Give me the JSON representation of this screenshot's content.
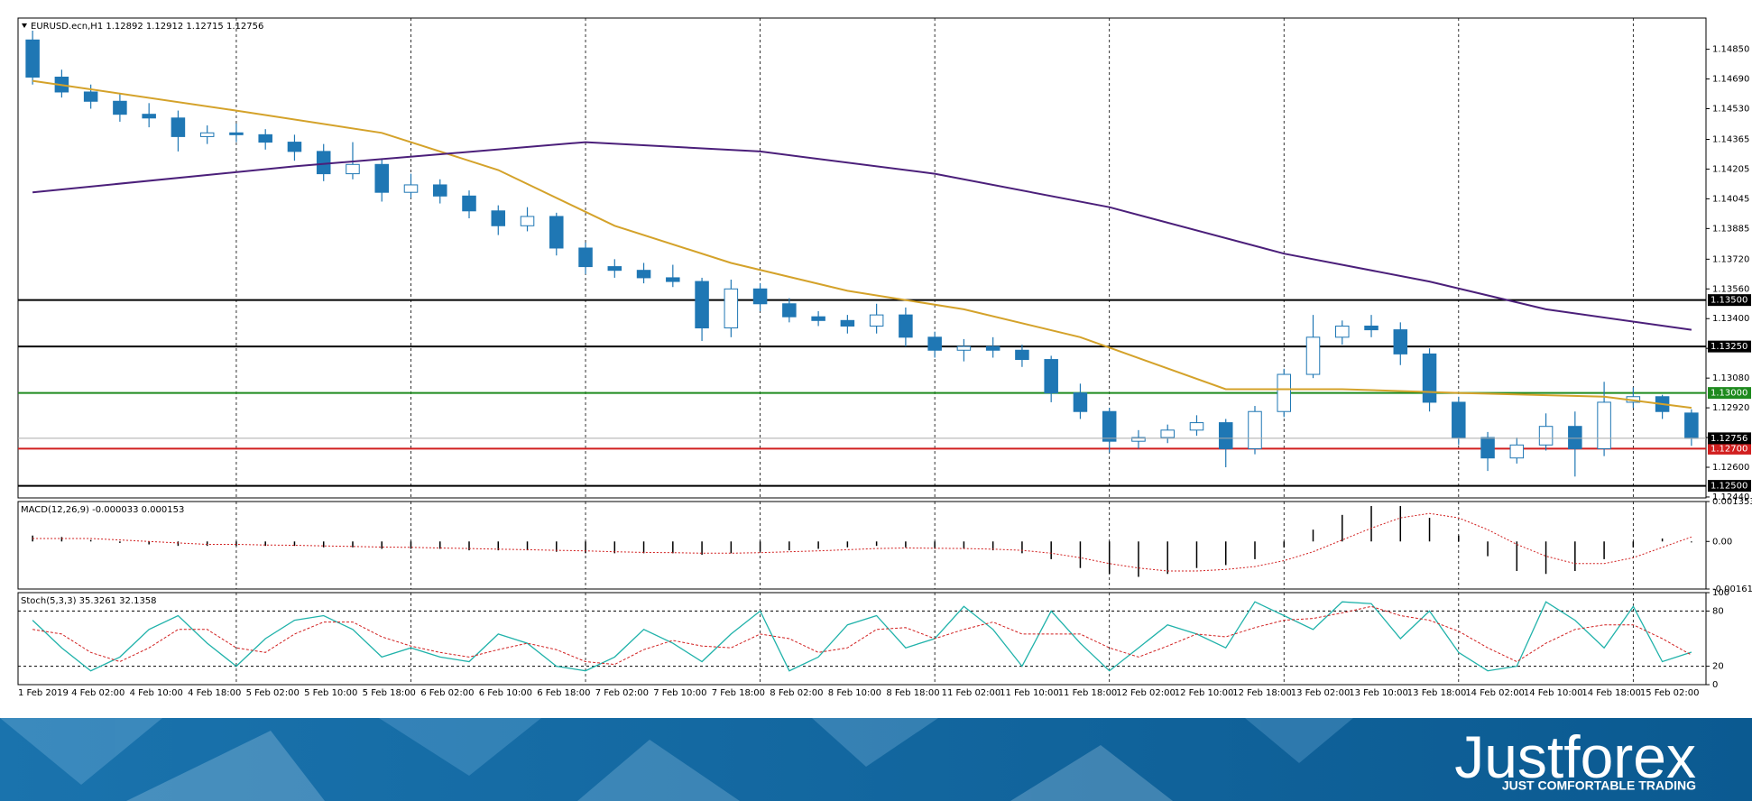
{
  "chart_data": [
    {
      "type": "candlestick",
      "title": "EURUSD.ecn,H1  1.12892 1.12912 1.12715 1.12756",
      "up_color": "#ffffff",
      "down_color": "#1f77b4",
      "wick_color": "#1f77b4",
      "open": [
        1.149,
        1.147,
        1.1462,
        1.1457,
        1.145,
        1.1448,
        1.1438,
        1.144,
        1.1439,
        1.1435,
        1.143,
        1.1418,
        1.1423,
        1.1408,
        1.1412,
        1.1406,
        1.1398,
        1.139,
        1.1395,
        1.1378,
        1.1368,
        1.1366,
        1.1362,
        1.136,
        1.1335,
        1.1356,
        1.1348,
        1.1341,
        1.1339,
        1.1336,
        1.1342,
        1.133,
        1.1323,
        1.1325,
        1.1323,
        1.1318,
        1.13,
        1.129,
        1.1274,
        1.1276,
        1.128,
        1.1284,
        1.127,
        1.129,
        1.131,
        1.133,
        1.1336,
        1.1334,
        1.1321,
        1.1295,
        1.1276,
        1.1265,
        1.1272,
        1.1282,
        1.127,
        1.1295,
        1.1298,
        1.12892
      ],
      "high": [
        1.1495,
        1.1474,
        1.1466,
        1.1461,
        1.1456,
        1.1452,
        1.1444,
        1.1445,
        1.1442,
        1.1439,
        1.1434,
        1.1435,
        1.1426,
        1.1418,
        1.1415,
        1.1409,
        1.1401,
        1.14,
        1.1397,
        1.1381,
        1.1372,
        1.137,
        1.1369,
        1.1362,
        1.1361,
        1.1359,
        1.1351,
        1.1344,
        1.1342,
        1.1348,
        1.1346,
        1.1333,
        1.1329,
        1.133,
        1.1326,
        1.132,
        1.1305,
        1.1292,
        1.128,
        1.1283,
        1.1288,
        1.1286,
        1.1293,
        1.1313,
        1.1342,
        1.1339,
        1.1342,
        1.1338,
        1.1324,
        1.1298,
        1.1279,
        1.1276,
        1.1289,
        1.129,
        1.1306,
        1.1303,
        1.1299,
        1.12912
      ],
      "low": [
        1.1466,
        1.1459,
        1.1453,
        1.1446,
        1.1443,
        1.143,
        1.1434,
        1.1435,
        1.1431,
        1.1425,
        1.1414,
        1.1415,
        1.1403,
        1.1405,
        1.1402,
        1.1394,
        1.1385,
        1.1387,
        1.1374,
        1.1364,
        1.1362,
        1.1359,
        1.1357,
        1.1328,
        1.133,
        1.1344,
        1.1338,
        1.1336,
        1.1332,
        1.1332,
        1.1325,
        1.1319,
        1.1317,
        1.1319,
        1.1314,
        1.1295,
        1.1286,
        1.1268,
        1.127,
        1.1273,
        1.1277,
        1.126,
        1.1267,
        1.1287,
        1.1308,
        1.1326,
        1.133,
        1.1315,
        1.129,
        1.1272,
        1.1258,
        1.1262,
        1.1269,
        1.1255,
        1.1266,
        1.1292,
        1.1286,
        1.12715
      ],
      "close": [
        1.147,
        1.1462,
        1.1457,
        1.145,
        1.1448,
        1.1438,
        1.144,
        1.1439,
        1.1435,
        1.143,
        1.1418,
        1.1423,
        1.1408,
        1.1412,
        1.1406,
        1.1398,
        1.139,
        1.1395,
        1.1378,
        1.1368,
        1.1366,
        1.1362,
        1.136,
        1.1335,
        1.1356,
        1.1348,
        1.1341,
        1.1339,
        1.1336,
        1.1342,
        1.133,
        1.1323,
        1.1325,
        1.1323,
        1.1318,
        1.13,
        1.129,
        1.1274,
        1.1276,
        1.128,
        1.1284,
        1.127,
        1.129,
        1.131,
        1.133,
        1.1336,
        1.1334,
        1.1321,
        1.1295,
        1.1276,
        1.1265,
        1.1272,
        1.1282,
        1.127,
        1.1295,
        1.1298,
        1.129,
        1.12756
      ],
      "lines": [
        {
          "color": "#d4a22a",
          "x": [
            0,
            7,
            12,
            16,
            20,
            24,
            28,
            32,
            36,
            41,
            45,
            49,
            54,
            57
          ],
          "values": [
            1.1468,
            1.1452,
            1.144,
            1.142,
            1.139,
            1.137,
            1.1355,
            1.1345,
            1.133,
            1.1302,
            1.1302,
            1.13,
            1.1298,
            1.1292
          ]
        },
        {
          "color": "#4b1f7a",
          "x": [
            0,
            9,
            19,
            25,
            31,
            37,
            43,
            48,
            52,
            57
          ],
          "values": [
            1.1408,
            1.1422,
            1.1435,
            1.143,
            1.1418,
            1.14,
            1.1375,
            1.136,
            1.1345,
            1.1334
          ]
        }
      ],
      "levels": [
        {
          "value": 1.135,
          "label": "1.13500",
          "color": "#000000"
        },
        {
          "value": 1.1325,
          "label": "1.13250",
          "color": "#000000"
        },
        {
          "value": 1.13,
          "label": "1.13000",
          "color": "#1e8a1e"
        },
        {
          "value": 1.127,
          "label": "1.12700",
          "color": "#d11f1f"
        },
        {
          "value": 1.125,
          "label": "1.12500",
          "color": "#000000"
        }
      ],
      "ylim": [
        1.12435,
        1.15018
      ],
      "yticks": [
        {
          "value": 1.1485,
          "label": "1.14850"
        },
        {
          "value": 1.1469,
          "label": "1.14690"
        },
        {
          "value": 1.1453,
          "label": "1.14530"
        },
        {
          "value": 1.14365,
          "label": "1.14365"
        },
        {
          "value": 1.14205,
          "label": "1.14205"
        },
        {
          "value": 1.14045,
          "label": "1.14045"
        },
        {
          "value": 1.13885,
          "label": "1.13885"
        },
        {
          "value": 1.1372,
          "label": "1.13720"
        },
        {
          "value": 1.1356,
          "label": "1.13560"
        },
        {
          "value": 1.134,
          "label": "1.13400"
        },
        {
          "value": 1.1324,
          "label": "1.13240"
        },
        {
          "value": 1.1308,
          "label": "1.13080"
        },
        {
          "value": 1.1292,
          "label": "1.12920"
        },
        {
          "value": 1.1276,
          "label": "1.12760"
        },
        {
          "value": 1.126,
          "label": "1.12600"
        },
        {
          "value": 1.1244,
          "label": "1.12440"
        }
      ]
    },
    {
      "type": "macd",
      "title": "MACD(12,26,9) -0.000033 0.000153",
      "histogram": [
        0.0002,
        0.00015,
        5e-05,
        -5e-05,
        -0.0001,
        -0.00015,
        -0.00015,
        -0.00015,
        -0.00015,
        -0.00015,
        -0.0002,
        -0.0002,
        -0.00025,
        -0.00025,
        -0.00025,
        -0.0003,
        -0.0003,
        -0.0003,
        -0.00035,
        -0.0004,
        -0.0004,
        -0.0004,
        -0.0004,
        -0.00045,
        -0.0004,
        -0.00035,
        -0.0003,
        -0.00025,
        -0.0002,
        -0.00015,
        -0.0002,
        -0.00025,
        -0.00025,
        -0.0003,
        -0.0004,
        -0.0006,
        -0.0009,
        -0.0011,
        -0.0012,
        -0.0011,
        -0.0009,
        -0.0008,
        -0.0006,
        -0.0002,
        0.0004,
        0.0009,
        0.0012,
        0.0012,
        0.0008,
        0.0002,
        -0.0005,
        -0.001,
        -0.0011,
        -0.001,
        -0.0006,
        -0.0002,
        0.0001,
        -3.3e-05
      ],
      "signal": [
        0.0001,
        0.0001,
        0.0001,
        5e-05,
        0,
        -5e-05,
        -0.0001,
        -0.0001,
        -0.00012,
        -0.00013,
        -0.00015,
        -0.00017,
        -0.00019,
        -0.0002,
        -0.00022,
        -0.00024,
        -0.00026,
        -0.00028,
        -0.0003,
        -0.00032,
        -0.00035,
        -0.00037,
        -0.00038,
        -0.0004,
        -0.0004,
        -0.00038,
        -0.00035,
        -0.00032,
        -0.00028,
        -0.00024,
        -0.00022,
        -0.00023,
        -0.00024,
        -0.00026,
        -0.0003,
        -0.0004,
        -0.00055,
        -0.00075,
        -0.0009,
        -0.001,
        -0.001,
        -0.00095,
        -0.00085,
        -0.00065,
        -0.00035,
        5e-05,
        0.00045,
        0.0008,
        0.00095,
        0.0008,
        0.0004,
        -0.0001,
        -0.0005,
        -0.00075,
        -0.00075,
        -0.00055,
        -0.0002,
        0.000153
      ],
      "histogram_color": "#000000",
      "signal_color": "#d11f1f",
      "ylim": [
        -0.001612,
        0.001353
      ],
      "yticks": [
        0.001353,
        {
          "value": 0,
          "label": "0.00"
        },
        -0.001612
      ]
    },
    {
      "type": "stochastic",
      "title": "Stoch(5,3,3) 35.3261 32.1358",
      "series": [
        {
          "color": "#20b2aa",
          "values": [
            70,
            40,
            15,
            30,
            60,
            75,
            45,
            20,
            50,
            70,
            75,
            60,
            30,
            40,
            30,
            25,
            55,
            45,
            20,
            15,
            30,
            60,
            45,
            25,
            55,
            80,
            15,
            30,
            65,
            75,
            40,
            50,
            85,
            60,
            20,
            80,
            45,
            15,
            40,
            65,
            55,
            40,
            90,
            75,
            60,
            90,
            88,
            50,
            80,
            35,
            15,
            20,
            90,
            70,
            40,
            85,
            25,
            35.3261
          ]
        },
        {
          "color": "#d11f1f",
          "values": [
            60,
            55,
            35,
            25,
            40,
            60,
            60,
            40,
            35,
            55,
            68,
            68,
            52,
            42,
            35,
            30,
            38,
            45,
            38,
            25,
            22,
            38,
            48,
            42,
            40,
            55,
            50,
            35,
            40,
            60,
            62,
            50,
            60,
            68,
            55,
            55,
            55,
            40,
            30,
            42,
            55,
            52,
            62,
            70,
            72,
            78,
            85,
            75,
            70,
            58,
            40,
            25,
            45,
            60,
            65,
            65,
            50,
            32.1358
          ]
        }
      ],
      "levels": [
        80,
        20
      ],
      "ylim": [
        0,
        100
      ],
      "yticks": [
        100,
        80,
        20,
        0
      ]
    }
  ],
  "time_axis": {
    "labels": [
      "1 Feb 2019",
      "4 Feb 02:00",
      "4 Feb 10:00",
      "4 Feb 18:00",
      "5 Feb 02:00",
      "5 Feb 10:00",
      "5 Feb 18:00",
      "6 Feb 02:00",
      "6 Feb 10:00",
      "6 Feb 18:00",
      "7 Feb 02:00",
      "7 Feb 10:00",
      "7 Feb 18:00",
      "8 Feb 02:00",
      "8 Feb 10:00",
      "8 Feb 18:00",
      "11 Feb 02:00",
      "11 Feb 10:00",
      "11 Feb 18:00",
      "12 Feb 02:00",
      "12 Feb 10:00",
      "12 Feb 18:00",
      "13 Feb 02:00",
      "13 Feb 10:00",
      "13 Feb 18:00",
      "14 Feb 02:00",
      "14 Feb 10:00",
      "14 Feb 18:00",
      "15 Feb 02:00"
    ]
  },
  "banner": {
    "brand": "Justforex",
    "slogan": "JUST COMFORTABLE TRADING"
  }
}
